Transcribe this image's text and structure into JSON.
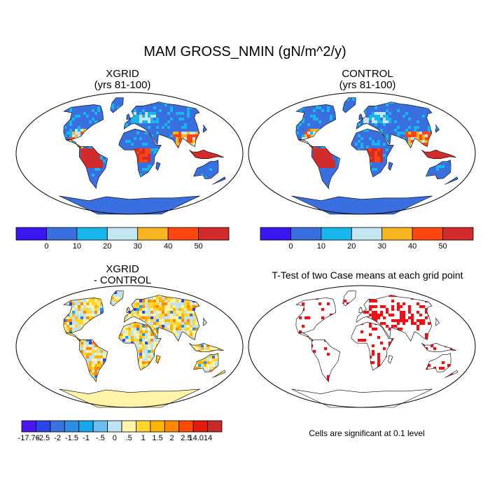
{
  "main_title": "MAM GROSS_NMIN (gN/m^2/y)",
  "panels": {
    "p1": {
      "title1": "XGRID",
      "title2": "(yrs 81-100)"
    },
    "p2": {
      "title1": "CONTROL",
      "title2": "(yrs 81-100)"
    },
    "p3": {
      "title1": "XGRID",
      "title2": "- CONTROL"
    },
    "p4": {
      "title1": "T-Test of two Case means at each grid point",
      "note": "Cells are significant at 0.1 level"
    }
  },
  "colorbar_abs": {
    "colors": [
      "#3a16f0",
      "#3a6fe0",
      "#19b6ee",
      "#c4e6f2",
      "#f9b621",
      "#ff4610",
      "#d12b2b"
    ],
    "labels": [
      "0",
      "10",
      "20",
      "30",
      "40",
      "50"
    ]
  },
  "colorbar_diff": {
    "colors": [
      "#4a17f0",
      "#2b45e8",
      "#3a72e2",
      "#2d8ee6",
      "#15a8ec",
      "#69bfee",
      "#bfe3f2",
      "#fff3a8",
      "#ffd52e",
      "#ffb400",
      "#ff8a00",
      "#ff4a0a",
      "#e41a0c",
      "#c62a2a"
    ],
    "labels": [
      "-17.76",
      "-2.5",
      "-2",
      "-1.5",
      "-1",
      "-.5",
      "0",
      ".5",
      "1",
      "1.5",
      "2",
      "2.5",
      "14.014"
    ]
  },
  "colors": {
    "ocean": "#ffffff",
    "frame": "#000000",
    "significant": "#e8141a"
  },
  "chart_data": [
    {
      "type": "heatmap",
      "title": "XGRID (yrs 81-100)",
      "projection": "robinson",
      "colorbar": "colorbar_abs",
      "value_range": [
        0,
        50
      ]
    },
    {
      "type": "heatmap",
      "title": "CONTROL (yrs 81-100)",
      "projection": "robinson",
      "colorbar": "colorbar_abs",
      "value_range": [
        0,
        50
      ]
    },
    {
      "type": "heatmap",
      "title": "XGRID - CONTROL",
      "projection": "robinson",
      "colorbar": "colorbar_diff",
      "value_range": [
        -17.76,
        14.014
      ]
    },
    {
      "type": "heatmap",
      "title": "T-Test of two Case means at each grid point",
      "projection": "robinson",
      "annotation": "Cells are significant at 0.1 level"
    }
  ]
}
